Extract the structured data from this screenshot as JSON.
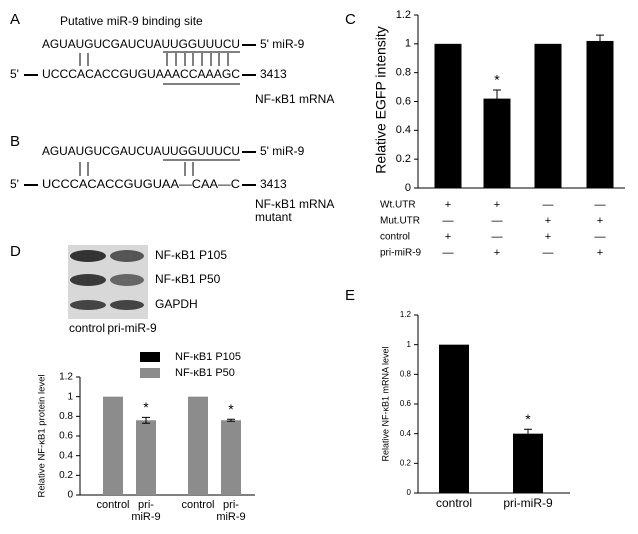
{
  "panel_labels": [
    "A",
    "B",
    "C",
    "D",
    "E"
  ],
  "panel_a": {
    "title": "Putative miR-9 binding site",
    "mirna_seq": "AGUAUGUCGAUCUAUUGGUUUCU",
    "mirna_label": "5' miR-9",
    "mrna_prefix": "5'",
    "mrna_seq": "UCCCACACCGUGUAAACCAAAGC",
    "position": "3413",
    "mrna_label": "NF-κB1 mRNA"
  },
  "panel_b": {
    "mirna_seq": "AGUAUGUCGAUCUAUUGGUUUCU",
    "mirna_label": "5' miR-9",
    "mrna_prefix": "5'",
    "mrna_seq": "UCCCACACCGUGUAA—CAA—C",
    "position": "3413",
    "mrna_label": "NF-κB1 mRNA",
    "mrna_note": "mutant"
  },
  "blot": {
    "bands": [
      "NF-κB1 P105",
      "NF-κB1 P50",
      "GAPDH"
    ],
    "lanes": [
      "control",
      "pri-miR-9"
    ]
  },
  "chart_data": [
    {
      "type": "bar",
      "ylabel": "Relative EGFP intensity",
      "values": [
        1,
        0.62,
        1,
        1.02
      ],
      "errors": [
        null,
        0.06,
        null,
        0.04
      ],
      "annotations": [
        null,
        "*",
        null,
        null
      ],
      "color": "#000000",
      "ylim": [
        0,
        1.2
      ],
      "yticks": [
        0,
        0.2,
        0.4,
        0.6,
        0.8,
        1,
        1.2
      ],
      "conditions": [
        {
          "label": "Wt.UTR",
          "signs": [
            "+",
            "+",
            "—",
            "—"
          ]
        },
        {
          "label": "Mut.UTR",
          "signs": [
            "—",
            "—",
            "+",
            "+"
          ]
        },
        {
          "label": "control",
          "signs": [
            "+",
            "—",
            "+",
            "—"
          ]
        },
        {
          "label": "pri-miR-9",
          "signs": [
            "—",
            "+",
            "—",
            "+"
          ]
        }
      ]
    },
    {
      "type": "bar",
      "ylabel": "Relative NF-κB1 protein level",
      "categories": [
        "control",
        "pri-miR-9",
        "control",
        "pri-miR-9"
      ],
      "values": [
        1,
        0.76,
        1,
        0.76
      ],
      "errors": [
        null,
        0.03,
        null,
        0.01
      ],
      "annotations": [
        null,
        "*",
        null,
        "*"
      ],
      "color": "#8c8c8c",
      "legend": [
        {
          "name": "NF-κB1 P105",
          "color": "#000000"
        },
        {
          "name": "NF-κB1 P50",
          "color": "#8c8c8c"
        }
      ],
      "ylim": [
        0,
        1.2
      ],
      "yticks": [
        0,
        0.2,
        0.4,
        0.6,
        0.8,
        1,
        1.2
      ]
    },
    {
      "type": "bar",
      "ylabel": "Relative NF-κB1 mRNA level",
      "categories": [
        "control",
        "pri-miR-9"
      ],
      "values": [
        1,
        0.4
      ],
      "errors": [
        null,
        0.03
      ],
      "annotations": [
        null,
        "*"
      ],
      "color": "#000000",
      "ylim": [
        0,
        1.2
      ],
      "yticks": [
        0,
        0.2,
        0.4,
        0.6,
        0.8,
        1,
        1.2
      ]
    }
  ]
}
